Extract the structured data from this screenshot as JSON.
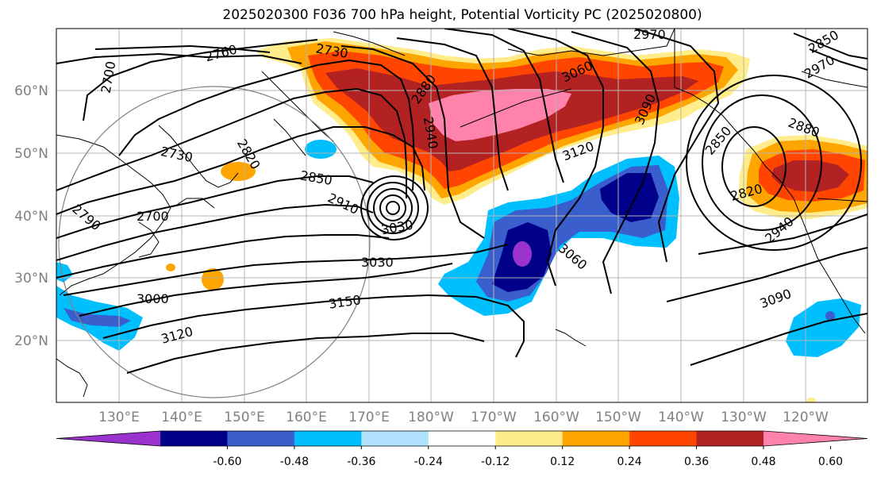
{
  "title": "2025020300 F036 700 hPa height, Potential Vorticity PC (2025020800)",
  "lat_labels": [
    "60°N",
    "50°N",
    "40°N",
    "30°N",
    "20°N"
  ],
  "lon_labels": [
    "130°E",
    "140°E",
    "150°E",
    "160°E",
    "170°E",
    "180°W",
    "170°W",
    "160°W",
    "150°W",
    "140°W",
    "130°W",
    "120°W"
  ],
  "colorbar": {
    "colors": [
      "#9a32cd",
      "#00008b",
      "#3a5fcd",
      "#00bfff",
      "#b0e2ff",
      "#ffffff",
      "#ffec8b",
      "#ffa500",
      "#ff4500",
      "#b22222",
      "#ff82ab"
    ],
    "tick_labels": [
      "-0.60",
      "-0.48",
      "-0.36",
      "-0.24",
      "-0.12",
      "0.12",
      "0.24",
      "0.36",
      "0.48",
      "0.60"
    ]
  },
  "contour_labels": [
    "2700",
    "2730",
    "2760",
    "2730",
    "2880",
    "2940",
    "3060",
    "2970",
    "3090",
    "3120",
    "2850",
    "2880",
    "2820",
    "2850",
    "2940",
    "2820",
    "2700",
    "2790",
    "2910",
    "3030",
    "3030",
    "3060",
    "3000",
    "3150",
    "3120",
    "3090",
    "2850",
    "2970"
  ]
}
